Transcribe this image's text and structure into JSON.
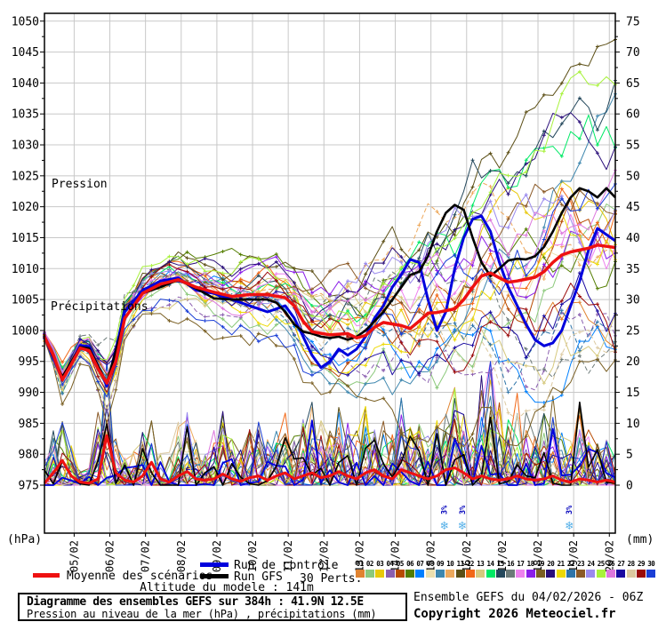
{
  "chart_data": {
    "type": "line",
    "title": "Diagramme des ensembles GEFS sur 384h : 41.9N 12.5E",
    "subtitle": "Pression au niveau de la mer (hPa) , précipitations (mm)",
    "x_axis": {
      "dates": [
        "05/02",
        "06/02",
        "07/02",
        "08/02",
        "09/02",
        "10/02",
        "11/02",
        "12/02",
        "13/02",
        "14/02",
        "15/02",
        "16/02",
        "17/02",
        "18/02",
        "19/02",
        "20/02"
      ],
      "hours_total": 384
    },
    "left_axis": {
      "unit": "(hPa)",
      "label": "Pression",
      "min": 975,
      "max": 1050,
      "tick_step": 5
    },
    "right_axis": {
      "unit": "(mm)",
      "label": "Précipitations",
      "min": 0,
      "max": 75,
      "tick_step": 5
    },
    "series": {
      "mean": {
        "name": "Moyenne des scénarios",
        "color": "#ee1111",
        "width": 3.5,
        "pressure": [
          [
            0,
            999
          ],
          [
            6,
            996
          ],
          [
            12,
            992
          ],
          [
            18,
            994.5
          ],
          [
            27,
            998.5
          ],
          [
            33,
            995
          ],
          [
            42,
            991.5
          ],
          [
            48,
            995
          ],
          [
            54,
            1002
          ],
          [
            66,
            1006
          ],
          [
            78,
            1007.5
          ],
          [
            90,
            1008.2
          ],
          [
            102,
            1007
          ],
          [
            114,
            1006.2
          ],
          [
            126,
            1005.5
          ],
          [
            138,
            1005.8
          ],
          [
            150,
            1005.8
          ],
          [
            162,
            1005.3
          ],
          [
            168,
            1004
          ],
          [
            174,
            1001.5
          ],
          [
            180,
            999.8
          ],
          [
            192,
            999.3
          ],
          [
            204,
            999.5
          ],
          [
            210,
            998.8
          ],
          [
            216,
            999.2
          ],
          [
            222,
            1000.5
          ],
          [
            228,
            1001.3
          ],
          [
            240,
            1000.8
          ],
          [
            246,
            1000.3
          ],
          [
            252,
            1001.5
          ],
          [
            258,
            1002.8
          ],
          [
            264,
            1002.9
          ],
          [
            276,
            1003.5
          ],
          [
            282,
            1005
          ],
          [
            288,
            1007
          ],
          [
            294,
            1008.8
          ],
          [
            300,
            1009.3
          ],
          [
            306,
            1008.5
          ],
          [
            312,
            1007.8
          ],
          [
            318,
            1008
          ],
          [
            324,
            1008.3
          ],
          [
            330,
            1008.6
          ],
          [
            336,
            1009.5
          ],
          [
            342,
            1011
          ],
          [
            348,
            1012.2
          ],
          [
            354,
            1012.7
          ],
          [
            360,
            1013
          ],
          [
            366,
            1013.3
          ],
          [
            372,
            1013.8
          ],
          [
            378,
            1013.6
          ],
          [
            384,
            1013.4
          ]
        ],
        "precip": [
          [
            0,
            0.3
          ],
          [
            6,
            2
          ],
          [
            12,
            4
          ],
          [
            18,
            1.5
          ],
          [
            24,
            0.5
          ],
          [
            30,
            0.3
          ],
          [
            36,
            1
          ],
          [
            42,
            8
          ],
          [
            48,
            2
          ],
          [
            54,
            0.8
          ],
          [
            60,
            0.5
          ],
          [
            66,
            1.5
          ],
          [
            72,
            3.7
          ],
          [
            78,
            1
          ],
          [
            84,
            0.5
          ],
          [
            90,
            1.5
          ],
          [
            96,
            2.2
          ],
          [
            102,
            1
          ],
          [
            108,
            0.8
          ],
          [
            114,
            1
          ],
          [
            120,
            1.8
          ],
          [
            126,
            1
          ],
          [
            132,
            0.6
          ],
          [
            138,
            1.2
          ],
          [
            144,
            1.5
          ],
          [
            150,
            0.8
          ],
          [
            156,
            1.5
          ],
          [
            162,
            2
          ],
          [
            168,
            1
          ],
          [
            174,
            1.5
          ],
          [
            180,
            2
          ],
          [
            186,
            1.2
          ],
          [
            192,
            1.5
          ],
          [
            198,
            2.2
          ],
          [
            204,
            1.5
          ],
          [
            210,
            1
          ],
          [
            216,
            2
          ],
          [
            222,
            2.5
          ],
          [
            228,
            1.5
          ],
          [
            234,
            1
          ],
          [
            240,
            2.5
          ],
          [
            246,
            2
          ],
          [
            252,
            1.5
          ],
          [
            258,
            1
          ],
          [
            264,
            1.5
          ],
          [
            270,
            2.5
          ],
          [
            276,
            2.8
          ],
          [
            282,
            2
          ],
          [
            288,
            1
          ],
          [
            294,
            1.5
          ],
          [
            300,
            1
          ],
          [
            306,
            0.8
          ],
          [
            312,
            1
          ],
          [
            318,
            1.5
          ],
          [
            324,
            1
          ],
          [
            330,
            0.8
          ],
          [
            336,
            1
          ],
          [
            342,
            1.5
          ],
          [
            348,
            0.8
          ],
          [
            354,
            0.5
          ],
          [
            360,
            1
          ],
          [
            366,
            0.8
          ],
          [
            372,
            0.5
          ],
          [
            378,
            0.8
          ],
          [
            384,
            0.5
          ]
        ]
      },
      "control": {
        "name": "Run de contrôle",
        "color": "#0000dd",
        "width": 3,
        "pressure": [
          [
            0,
            999
          ],
          [
            12,
            992
          ],
          [
            27,
            999
          ],
          [
            42,
            991
          ],
          [
            54,
            1003
          ],
          [
            66,
            1006.5
          ],
          [
            78,
            1008
          ],
          [
            90,
            1008.5
          ],
          [
            102,
            1006.5
          ],
          [
            114,
            1006
          ],
          [
            126,
            1005
          ],
          [
            138,
            1004
          ],
          [
            150,
            1003
          ],
          [
            162,
            1004
          ],
          [
            168,
            1002
          ],
          [
            174,
            999
          ],
          [
            180,
            996
          ],
          [
            186,
            994
          ],
          [
            192,
            995
          ],
          [
            198,
            997
          ],
          [
            204,
            996
          ],
          [
            210,
            997
          ],
          [
            216,
            999
          ],
          [
            222,
            1002
          ],
          [
            228,
            1004
          ],
          [
            234,
            1007
          ],
          [
            240,
            1009
          ],
          [
            246,
            1011.5
          ],
          [
            252,
            1011
          ],
          [
            258,
            1005
          ],
          [
            264,
            1000
          ],
          [
            270,
            1003
          ],
          [
            276,
            1010
          ],
          [
            282,
            1015
          ],
          [
            288,
            1018
          ],
          [
            294,
            1018.5
          ],
          [
            300,
            1016
          ],
          [
            306,
            1011
          ],
          [
            312,
            1007
          ],
          [
            318,
            1004
          ],
          [
            324,
            1001
          ],
          [
            330,
            998.5
          ],
          [
            336,
            997.5
          ],
          [
            342,
            998
          ],
          [
            348,
            1000
          ],
          [
            354,
            1004
          ],
          [
            360,
            1008
          ],
          [
            366,
            1013
          ],
          [
            372,
            1016.5
          ],
          [
            378,
            1015.5
          ],
          [
            384,
            1014.5
          ]
        ]
      },
      "gfs": {
        "name": "Run GFS",
        "color": "#000000",
        "width": 2.6,
        "pressure": [
          [
            0,
            999
          ],
          [
            12,
            992.5
          ],
          [
            27,
            998.5
          ],
          [
            42,
            991.5
          ],
          [
            54,
            1002
          ],
          [
            66,
            1006
          ],
          [
            78,
            1007
          ],
          [
            90,
            1008.2
          ],
          [
            96,
            1007.5
          ],
          [
            102,
            1006.8
          ],
          [
            108,
            1006
          ],
          [
            114,
            1005.2
          ],
          [
            126,
            1005
          ],
          [
            138,
            1005
          ],
          [
            150,
            1005
          ],
          [
            156,
            1004.5
          ],
          [
            162,
            1003
          ],
          [
            168,
            1001
          ],
          [
            174,
            999.8
          ],
          [
            180,
            999.5
          ],
          [
            186,
            999
          ],
          [
            192,
            998.8
          ],
          [
            198,
            999
          ],
          [
            204,
            998.5
          ],
          [
            210,
            999
          ],
          [
            216,
            1000
          ],
          [
            222,
            1001.5
          ],
          [
            228,
            1003
          ],
          [
            234,
            1005
          ],
          [
            240,
            1007
          ],
          [
            246,
            1009
          ],
          [
            252,
            1009.5
          ],
          [
            258,
            1012
          ],
          [
            264,
            1016
          ],
          [
            270,
            1019
          ],
          [
            276,
            1020.3
          ],
          [
            282,
            1019.5
          ],
          [
            288,
            1015
          ],
          [
            294,
            1011
          ],
          [
            300,
            1008.8
          ],
          [
            306,
            1010
          ],
          [
            312,
            1011.3
          ],
          [
            318,
            1011.6
          ],
          [
            324,
            1011.5
          ],
          [
            330,
            1012
          ],
          [
            336,
            1013.5
          ],
          [
            342,
            1016
          ],
          [
            348,
            1019
          ],
          [
            354,
            1021.5
          ],
          [
            360,
            1023
          ],
          [
            366,
            1022.5
          ],
          [
            372,
            1021.5
          ],
          [
            378,
            1023
          ],
          [
            384,
            1021.5
          ]
        ]
      }
    },
    "ensemble": {
      "label": "30 Perts.",
      "count": 30,
      "colors": [
        "#e08330",
        "#8cc97c",
        "#e8c80b",
        "#8b5fb0",
        "#b84a00",
        "#537d00",
        "#0080ff",
        "#ebdfae",
        "#3e87ae",
        "#eda95d",
        "#5c4f16",
        "#f26716",
        "#d6c97e",
        "#00e965",
        "#24485c",
        "#6c7a78",
        "#ee82ee",
        "#8a1fe8",
        "#7a5f23",
        "#2a0e7a",
        "#edd905",
        "#2e74a8",
        "#8b5a28",
        "#9a8aee",
        "#a8f23c",
        "#dd77dd",
        "#1a0aa0",
        "#dcc9a0",
        "#9a0a0a",
        "#1a3ed6"
      ],
      "spread": [
        [
          0,
          1
        ],
        [
          12,
          3.5
        ],
        [
          24,
          2.5
        ],
        [
          36,
          4
        ],
        [
          42,
          6
        ],
        [
          48,
          4
        ],
        [
          60,
          3
        ],
        [
          72,
          3.5
        ],
        [
          96,
          4
        ],
        [
          120,
          5
        ],
        [
          144,
          6
        ],
        [
          168,
          7
        ],
        [
          192,
          8
        ],
        [
          216,
          9
        ],
        [
          240,
          11
        ],
        [
          264,
          12
        ],
        [
          288,
          13
        ],
        [
          312,
          14
        ],
        [
          336,
          15
        ],
        [
          360,
          16
        ],
        [
          384,
          18
        ]
      ],
      "precip_potential": [
        [
          0,
          3
        ],
        [
          6,
          6
        ],
        [
          12,
          9
        ],
        [
          18,
          5
        ],
        [
          24,
          2
        ],
        [
          30,
          2
        ],
        [
          36,
          8
        ],
        [
          42,
          16
        ],
        [
          48,
          6
        ],
        [
          54,
          3
        ],
        [
          60,
          4
        ],
        [
          66,
          6
        ],
        [
          72,
          8
        ],
        [
          78,
          4
        ],
        [
          84,
          4
        ],
        [
          90,
          7
        ],
        [
          96,
          8
        ],
        [
          102,
          5
        ],
        [
          108,
          4
        ],
        [
          114,
          6
        ],
        [
          120,
          8
        ],
        [
          126,
          5
        ],
        [
          132,
          4
        ],
        [
          138,
          6
        ],
        [
          144,
          7
        ],
        [
          150,
          5
        ],
        [
          156,
          6
        ],
        [
          162,
          8
        ],
        [
          168,
          6
        ],
        [
          174,
          8
        ],
        [
          180,
          10
        ],
        [
          186,
          7
        ],
        [
          192,
          8
        ],
        [
          198,
          9
        ],
        [
          204,
          7
        ],
        [
          210,
          6
        ],
        [
          216,
          9
        ],
        [
          222,
          10
        ],
        [
          228,
          7
        ],
        [
          234,
          6
        ],
        [
          240,
          10
        ],
        [
          246,
          8
        ],
        [
          252,
          7
        ],
        [
          258,
          6
        ],
        [
          264,
          8
        ],
        [
          270,
          10
        ],
        [
          276,
          11
        ],
        [
          282,
          8
        ],
        [
          288,
          6
        ],
        [
          294,
          12
        ],
        [
          300,
          16
        ],
        [
          306,
          10
        ],
        [
          312,
          8
        ],
        [
          318,
          10
        ],
        [
          324,
          8
        ],
        [
          330,
          6
        ],
        [
          336,
          8
        ],
        [
          342,
          10
        ],
        [
          348,
          6
        ],
        [
          354,
          5
        ],
        [
          360,
          12
        ],
        [
          366,
          6
        ],
        [
          372,
          5
        ],
        [
          378,
          6
        ],
        [
          384,
          4
        ]
      ]
    },
    "snow_markers": [
      {
        "hour": 269,
        "label": "3%"
      },
      {
        "hour": 281,
        "label": "3%"
      },
      {
        "hour": 353,
        "label": "3%"
      }
    ]
  },
  "labels": {
    "hpa_unit": "(hPa)",
    "mm_unit": "(mm)"
  },
  "footer": {
    "altitude": "Altitude du modele : 141m",
    "run_info": "Ensemble GEFS du 04/02/2026 - 06Z",
    "copyright": "Copyright 2026 Meteociel.fr"
  }
}
